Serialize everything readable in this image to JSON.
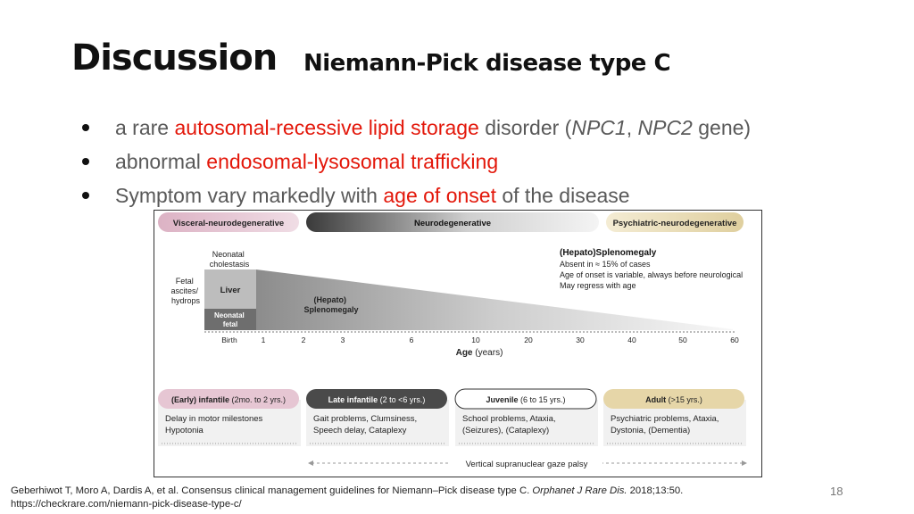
{
  "title": "Discussion",
  "subtitle": "Niemann-Pick disease type C",
  "bullets": [
    {
      "parts": [
        {
          "text": "a rare ",
          "style": "normal"
        },
        {
          "text": "autosomal-recessive lipid storage",
          "style": "red"
        },
        {
          "text": " disorder (",
          "style": "normal"
        },
        {
          "text": "NPC1",
          "style": "italic"
        },
        {
          "text": ", ",
          "style": "normal"
        },
        {
          "text": "NPC2",
          "style": "italic"
        },
        {
          "text": " gene)",
          "style": "normal"
        }
      ]
    },
    {
      "parts": [
        {
          "text": "abnormal ",
          "style": "normal"
        },
        {
          "text": "endosomal-lysosomal trafficking",
          "style": "red"
        }
      ]
    },
    {
      "parts": [
        {
          "text": "Symptom vary markedly with ",
          "style": "normal"
        },
        {
          "text": "age of onset",
          "style": "red"
        },
        {
          "text": " of the disease",
          "style": "normal"
        }
      ]
    }
  ],
  "figure": {
    "top_labels": {
      "visceral": "Visceral-neurodegenerative",
      "neuro": "Neurodegenerative",
      "psychiatric": "Psychiatric-neurodegenerative"
    },
    "fetal_label": [
      "Fetal",
      "ascites/",
      "hydrops"
    ],
    "neonatal_cholestasis": [
      "Neonatal",
      "cholestasis"
    ],
    "liver": "Liver",
    "neonatal_fetal": [
      "Neonatal",
      "fetal"
    ],
    "hepato_label": [
      "(Hepato)",
      "Splenomegaly"
    ],
    "hepato_box": {
      "title": "(Hepato)Splenomegaly",
      "lines": [
        "Absent in ≈ 15% of cases",
        "Age of onset is variable, always before neurological",
        "May regress with age"
      ]
    },
    "axis": {
      "start_label": "Birth",
      "ticks": [
        "1",
        "2",
        "3",
        "6",
        "10",
        "20",
        "30",
        "40",
        "50",
        "60"
      ],
      "label": "Age",
      "unit": "(years)"
    },
    "stages": [
      {
        "title": "(Early) infantile",
        "range": "(2mo. to 2 yrs.)",
        "symptoms": [
          "Delay in motor milestones",
          "Hypotonia"
        ]
      },
      {
        "title": "Late infantile",
        "range": "(2 to <6 yrs.)",
        "symptoms": [
          "Gait problems, Clumsiness,",
          "Speech delay, Cataplexy"
        ]
      },
      {
        "title": "Juvenile",
        "range": "(6 to 15 yrs.)",
        "symptoms": [
          "School problems, Ataxia,",
          "(Seizures), (Cataplexy)"
        ]
      },
      {
        "title": "Adult",
        "range": "(>15 yrs.)",
        "symptoms": [
          "Psychiatric problems, Ataxia,",
          "Dystonia, (Dementia)"
        ]
      }
    ],
    "gaze": "Vertical supranuclear gaze palsy"
  },
  "footer": {
    "line1_pre": "Geberhiwot T, Moro A, Dardis A, et al. Consensus clinical management guidelines for Niemann–Pick disease type C. ",
    "line1_journal": "Orphanet J Rare Dis.",
    "line1_post": " 2018;13:50.",
    "line2": "https://checkrare.com/niemann-pick-disease-type-c/"
  },
  "page_number": "18",
  "colors": {
    "accent_red": "#e3170a",
    "visceral_pink": "#e6c6d3",
    "psych_tan": "#e8dcb8",
    "late_dark": "#4a4a4a",
    "adult_tan": "#e6d6a8"
  }
}
